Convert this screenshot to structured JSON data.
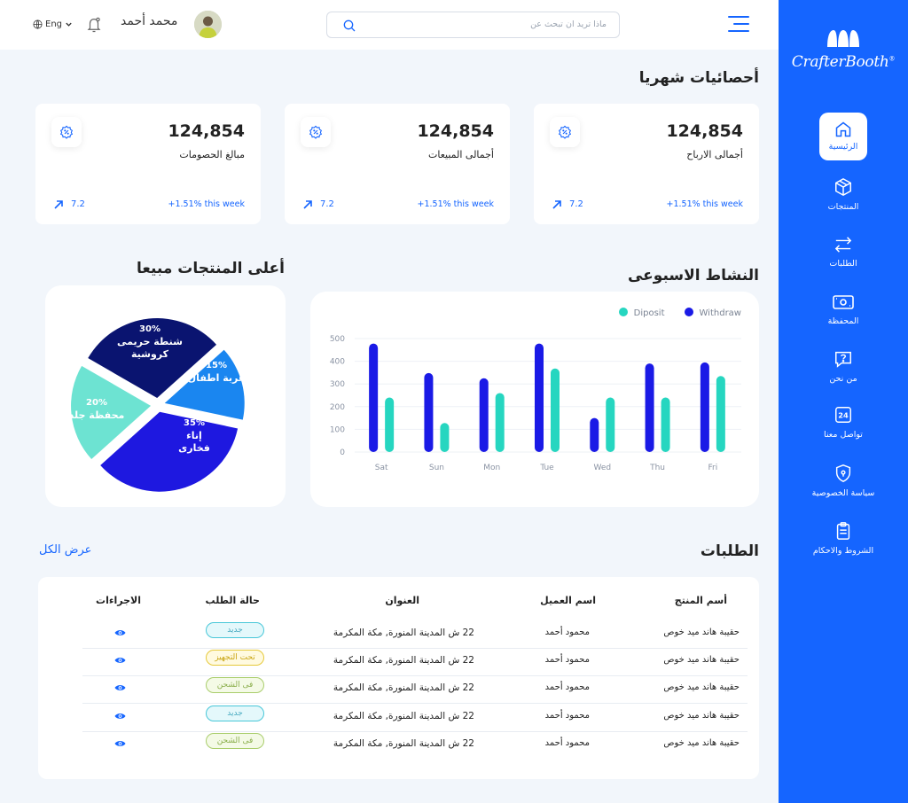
{
  "sidebar": {
    "brand": "CrafterBooth",
    "brand_mark": "®",
    "items": [
      {
        "label": "الرئيسية",
        "icon": "home-icon",
        "active": true
      },
      {
        "label": "المنتجات",
        "icon": "box-icon"
      },
      {
        "label": "الطلبات",
        "icon": "swap-arrows-icon"
      },
      {
        "label": "المحفظة",
        "icon": "wallet-icon"
      },
      {
        "label": "من نحن",
        "icon": "question-icon"
      },
      {
        "label": "تواصل معنا",
        "icon": "support-24-icon"
      },
      {
        "label": "سياسة الخصوصية",
        "icon": "shield-icon"
      },
      {
        "label": "الشروط والاحكام",
        "icon": "clipboard-icon"
      }
    ]
  },
  "header": {
    "search_placeholder": "ماذا تريد ان تبحث عن",
    "user_name": "محمد أحمد",
    "language": "Eng"
  },
  "monthly": {
    "title": "أحصائيات شهريا",
    "cards": [
      {
        "value": "124,854",
        "label": "أجمالى الارباح",
        "change": "7.2",
        "week": "+1.51% this week"
      },
      {
        "value": "124,854",
        "label": "أجمالى المبيعات",
        "change": "7.2",
        "week": "+1.51% this week"
      },
      {
        "value": "124,854",
        "label": "مبالغ الحصومات",
        "change": "7.2",
        "week": "+1.51% this week"
      }
    ]
  },
  "weekly_title": "النشاط الاسبوعى",
  "top_title": "أعلى المنتجات مبيعا",
  "chart_data": [
    {
      "type": "bar",
      "title": "النشاط الاسبوعى",
      "categories": [
        "Sat",
        "Sun",
        "Mon",
        "Tue",
        "Wed",
        "Thu",
        "Fri"
      ],
      "series": [
        {
          "name": "Withdraw",
          "color": "#1a1ae6",
          "values": [
            478,
            348,
            325,
            478,
            150,
            390,
            395
          ]
        },
        {
          "name": "Diposit",
          "color": "#26d6c0",
          "values": [
            240,
            128,
            260,
            368,
            240,
            240,
            335
          ]
        }
      ],
      "yticks": [
        0,
        100,
        200,
        300,
        400,
        500
      ],
      "ylim": [
        0,
        500
      ],
      "legend": "top-right",
      "grid": true
    },
    {
      "type": "pie",
      "title": "أعلى المنتجات مبيعا",
      "slices": [
        {
          "label": "شنطة حريمى كروشية",
          "percent": "30%",
          "value": 30,
          "color": "#0a1470"
        },
        {
          "label": "عربة اطفال",
          "percent": "15%",
          "value": 15,
          "color": "#1a86f0"
        },
        {
          "label": "إناء فخارى",
          "percent": "35%",
          "value": 35,
          "color": "#1e18e0"
        },
        {
          "label": "محفظة جلد",
          "percent": "20%",
          "value": 20,
          "color": "#6de3d2"
        }
      ]
    }
  ],
  "orders": {
    "title": "الطلبات",
    "view_all": "عرض الكل",
    "headers": {
      "product": "أسم المنتج",
      "customer": "اسم العميل",
      "address": "العنوان",
      "status": "حالة الطلب",
      "actions": "الاجراءات"
    },
    "rows": [
      {
        "product": "حقيبة هاند ميد خوص",
        "customer": "محمود أحمد",
        "address": "22 ش المدينة المنورة, مكة المكرمة",
        "status": "جديد",
        "status_type": "new"
      },
      {
        "product": "حقيبة هاند ميد خوص",
        "customer": "محمود أحمد",
        "address": "22 ش المدينة المنورة, مكة المكرمة",
        "status": "تحت التجهيز",
        "status_type": "prep"
      },
      {
        "product": "حقيبة هاند ميد خوص",
        "customer": "محمود أحمد",
        "address": "22 ش المدينة المنورة, مكة المكرمة",
        "status": "فى الشحن",
        "status_type": "ship"
      },
      {
        "product": "حقيبة هاند ميد خوص",
        "customer": "محمود أحمد",
        "address": "22 ش المدينة المنورة, مكة المكرمة",
        "status": "جديد",
        "status_type": "new"
      },
      {
        "product": "حقيبة هاند ميد خوص",
        "customer": "محمود أحمد",
        "address": "22 ش المدينة المنورة, مكة المكرمة",
        "status": "فى الشحن",
        "status_type": "ship"
      }
    ]
  },
  "colors": {
    "primary": "#1565ff",
    "background": "#f2f6fb"
  }
}
